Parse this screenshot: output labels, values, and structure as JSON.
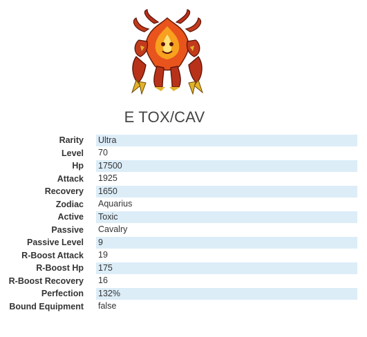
{
  "card": {
    "title": "E TOX/CAV",
    "portrait_icon": "fire-demon-portrait-icon",
    "highlight_color": "#dcedf8",
    "stats": [
      {
        "key": "rarity",
        "label": "Rarity",
        "value": "Ultra"
      },
      {
        "key": "level",
        "label": "Level",
        "value": "70"
      },
      {
        "key": "hp",
        "label": "Hp",
        "value": "17500"
      },
      {
        "key": "attack",
        "label": "Attack",
        "value": "1925"
      },
      {
        "key": "recovery",
        "label": "Recovery",
        "value": "1650"
      },
      {
        "key": "zodiac",
        "label": "Zodiac",
        "value": "Aquarius"
      },
      {
        "key": "active",
        "label": "Active",
        "value": "Toxic"
      },
      {
        "key": "passive",
        "label": "Passive",
        "value": "Cavalry"
      },
      {
        "key": "passive-level",
        "label": "Passive Level",
        "value": "9"
      },
      {
        "key": "r-boost-attack",
        "label": "R-Boost Attack",
        "value": "19"
      },
      {
        "key": "r-boost-hp",
        "label": "R-Boost Hp",
        "value": "175"
      },
      {
        "key": "r-boost-recovery",
        "label": "R-Boost Recovery",
        "value": "16"
      },
      {
        "key": "perfection",
        "label": "Perfection",
        "value": "132%"
      },
      {
        "key": "bound-equipment",
        "label": "Bound Equipment",
        "value": "false"
      }
    ]
  }
}
